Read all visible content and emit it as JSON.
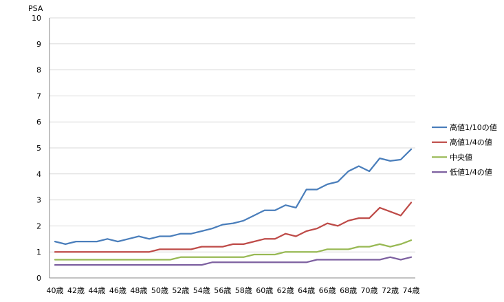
{
  "chart_data": {
    "type": "line",
    "title": "",
    "xlabel": "",
    "ylabel": "PSA",
    "ylim": [
      0,
      10
    ],
    "yticks": [
      0,
      1,
      2,
      3,
      4,
      5,
      6,
      7,
      8,
      9,
      10
    ],
    "grid": "horizontal",
    "legend_position": "right",
    "x": [
      "40歳",
      "41歳",
      "42歳",
      "43歳",
      "44歳",
      "45歳",
      "46歳",
      "47歳",
      "48歳",
      "49歳",
      "50歳",
      "51歳",
      "52歳",
      "53歳",
      "54歳",
      "55歳",
      "56歳",
      "57歳",
      "58歳",
      "59歳",
      "60歳",
      "61歳",
      "62歳",
      "63歳",
      "64歳",
      "65歳",
      "66歳",
      "67歳",
      "68歳",
      "69歳",
      "70歳",
      "71歳",
      "72歳",
      "73歳",
      "74歳"
    ],
    "xtick_labels": [
      "40歳",
      "42歳",
      "44歳",
      "46歳",
      "48歳",
      "50歳",
      "52歳",
      "54歳",
      "56歳",
      "58歳",
      "60歳",
      "62歳",
      "64歳",
      "66歳",
      "68歳",
      "70歳",
      "72歳",
      "74歳"
    ],
    "series": [
      {
        "name": "高値1/10の値",
        "color": "#4a7ebb",
        "values": [
          1.4,
          1.3,
          1.4,
          1.4,
          1.4,
          1.5,
          1.4,
          1.5,
          1.6,
          1.5,
          1.6,
          1.6,
          1.7,
          1.7,
          1.8,
          1.9,
          2.05,
          2.1,
          2.2,
          2.4,
          2.6,
          2.6,
          2.8,
          2.7,
          3.4,
          3.4,
          3.6,
          3.7,
          4.1,
          4.3,
          4.1,
          4.6,
          4.5,
          4.55,
          4.95
        ]
      },
      {
        "name": "高値1/4の値",
        "color": "#be4b48",
        "values": [
          1.0,
          1.0,
          1.0,
          1.0,
          1.0,
          1.0,
          1.0,
          1.0,
          1.0,
          1.0,
          1.1,
          1.1,
          1.1,
          1.1,
          1.2,
          1.2,
          1.2,
          1.3,
          1.3,
          1.4,
          1.5,
          1.5,
          1.7,
          1.6,
          1.8,
          1.9,
          2.1,
          2.0,
          2.2,
          2.3,
          2.3,
          2.7,
          2.55,
          2.4,
          2.9
        ]
      },
      {
        "name": "中央値",
        "color": "#98b954",
        "values": [
          0.7,
          0.7,
          0.7,
          0.7,
          0.7,
          0.7,
          0.7,
          0.7,
          0.7,
          0.7,
          0.7,
          0.7,
          0.8,
          0.8,
          0.8,
          0.8,
          0.8,
          0.8,
          0.8,
          0.9,
          0.9,
          0.9,
          1.0,
          1.0,
          1.0,
          1.0,
          1.1,
          1.1,
          1.1,
          1.2,
          1.2,
          1.3,
          1.2,
          1.3,
          1.45
        ]
      },
      {
        "name": "低値1/4の値",
        "color": "#7d60a0",
        "values": [
          0.5,
          0.5,
          0.5,
          0.5,
          0.5,
          0.5,
          0.5,
          0.5,
          0.5,
          0.5,
          0.5,
          0.5,
          0.5,
          0.5,
          0.5,
          0.6,
          0.6,
          0.6,
          0.6,
          0.6,
          0.6,
          0.6,
          0.6,
          0.6,
          0.6,
          0.7,
          0.7,
          0.7,
          0.7,
          0.7,
          0.7,
          0.7,
          0.8,
          0.7,
          0.8
        ]
      }
    ]
  }
}
